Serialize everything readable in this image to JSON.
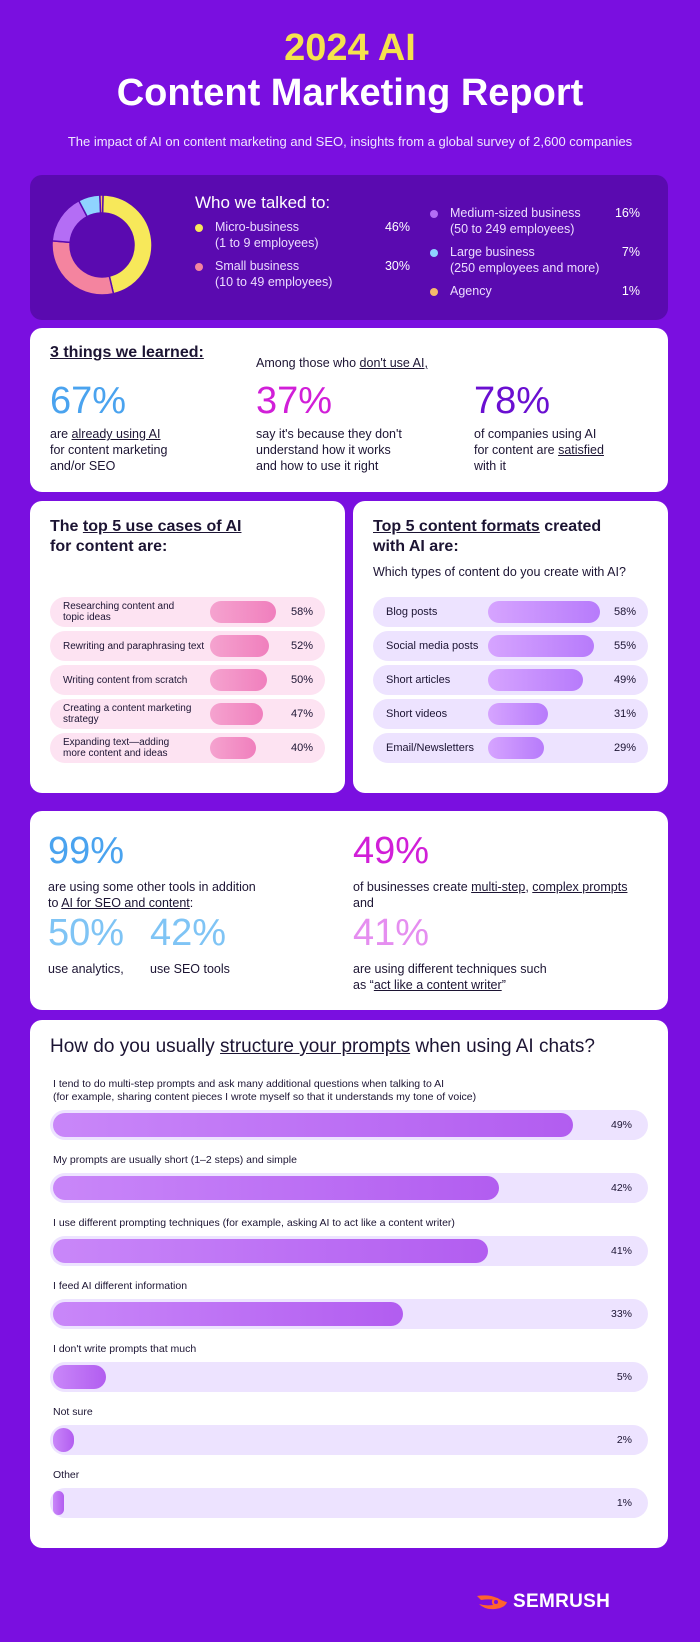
{
  "header": {
    "year_title": "2024 AI",
    "main_title": "Content Marketing Report",
    "subtitle": "The impact of AI on content marketing and SEO, insights from a global survey of 2,600 companies"
  },
  "who": {
    "heading": "Who we talked to:",
    "items": [
      {
        "label_line1": "Micro-business",
        "label_line2": "(1 to 9 employees)",
        "pct": "46%",
        "value": 46,
        "color": "#f7e85a"
      },
      {
        "label_line1": "Small business",
        "label_line2": "(10 to 49 employees)",
        "pct": "30%",
        "value": 30,
        "color": "#f4849f"
      },
      {
        "label_line1": "Medium-sized business",
        "label_line2": "(50 to 249 employees)",
        "pct": "16%",
        "value": 16,
        "color": "#b46df5"
      },
      {
        "label_line1": "Large business",
        "label_line2": "(250 employees and more)",
        "pct": "7%",
        "value": 7,
        "color": "#8fd3ff"
      },
      {
        "label_line1": "Agency",
        "label_line2": "",
        "pct": "1%",
        "value": 1,
        "color": "#f6b96b"
      }
    ]
  },
  "learned": {
    "title": "3 things we learned:",
    "pre_text_a": "Among those who ",
    "pre_text_u": "don't use AI,",
    "col1": {
      "big": "67%",
      "d1": "are ",
      "d1u": "already using AI",
      "d2": "for content marketing",
      "d3": "and/or SEO",
      "color": "#4aa3ef"
    },
    "col2": {
      "big": "37%",
      "d1": "say it's because they don't",
      "d2": "understand how it works",
      "d3": "and how to use it right",
      "color": "#d11fd8"
    },
    "col3": {
      "big": "78%",
      "d1": "of companies using AI",
      "d2a": "for content are ",
      "d2u": "satisfied",
      "d3": "with it",
      "color": "#6a0fd1"
    }
  },
  "uses": {
    "title_a": "The ",
    "title_u": "top 5 use cases of AI",
    "title_b": "for content are:",
    "items": [
      {
        "label": "Researching content and topic ideas",
        "pct": "58%",
        "value": 58
      },
      {
        "label": "Rewriting and paraphrasing text",
        "pct": "52%",
        "value": 52
      },
      {
        "label": "Writing content from scratch",
        "pct": "50%",
        "value": 50
      },
      {
        "label": "Creating a content marketing strategy",
        "pct": "47%",
        "value": 47
      },
      {
        "label": "Expanding text—adding more content and ideas",
        "pct": "40%",
        "value": 40
      }
    ]
  },
  "formats": {
    "title_u": "Top 5 content formats",
    "title_a": " created",
    "title_b": "with AI are:",
    "question": "Which types of content do you create with AI?",
    "items": [
      {
        "label": "Blog posts",
        "pct": "58%",
        "value": 58
      },
      {
        "label": "Social media posts",
        "pct": "55%",
        "value": 55
      },
      {
        "label": "Short articles",
        "pct": "49%",
        "value": 49
      },
      {
        "label": "Short videos",
        "pct": "31%",
        "value": 31
      },
      {
        "label": "Email/Newsletters",
        "pct": "29%",
        "value": 29
      }
    ]
  },
  "stats": {
    "s99": "99%",
    "s99_d1": "are using some other tools in addition",
    "s99_d2a": "to ",
    "s99_d2u": "AI for SEO and content",
    "s99_d2b": ":",
    "s50": "50%",
    "s50_d": "use analytics,",
    "s42": "42%",
    "s42_d": "use SEO tools",
    "s49": "49%",
    "s49_d1a": "of businesses create ",
    "s49_d1u1": "multi-step",
    "s49_d1b": ", ",
    "s49_d1u2": "complex prompts",
    "s49_d2": "and",
    "s41": "41%",
    "s41_d1": "are using different techniques such",
    "s41_d2a": "as “",
    "s41_d2u": "act like a content writer",
    "s41_d2b": "”",
    "colors": {
      "blue": "#4aa3ef",
      "lightblue": "#7fc4f5",
      "magenta": "#d11fd8",
      "pink": "#e58ef0"
    }
  },
  "prompts": {
    "title_a": "How do you usually ",
    "title_u": "structure your prompts",
    "title_b": " when using AI chats?",
    "items": [
      {
        "label": "I tend to do multi-step prompts and ask many additional questions when talking to AI",
        "label2": "(for example, sharing content pieces I wrote myself so that it understands my tone of voice)",
        "pct": "49%",
        "value": 49
      },
      {
        "label": "My prompts are usually short (1–2 steps) and simple",
        "label2": "",
        "pct": "42%",
        "value": 42
      },
      {
        "label": "I use different prompting techniques (for example, asking AI to act like a content writer)",
        "label2": "",
        "pct": "41%",
        "value": 41
      },
      {
        "label": "I feed AI different information",
        "label2": "",
        "pct": "33%",
        "value": 33
      },
      {
        "label": "I don't write prompts that much",
        "label2": "",
        "pct": "5%",
        "value": 5
      },
      {
        "label": "Not sure",
        "label2": "",
        "pct": "2%",
        "value": 2
      },
      {
        "label": "Other",
        "label2": "",
        "pct": "1%",
        "value": 1
      }
    ]
  },
  "brand": {
    "name": "SEMRUSH",
    "icon": "semrush-flame-icon"
  }
}
